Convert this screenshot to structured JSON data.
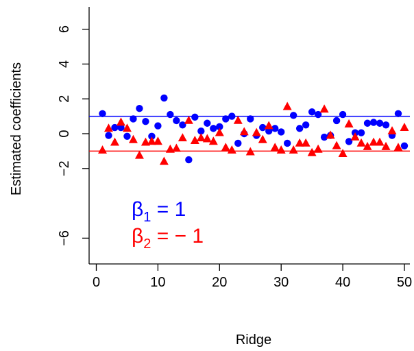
{
  "chart_data": {
    "type": "scatter",
    "xlabel": "Ridge",
    "ylabel": "Estimated coefficients",
    "xlim": [
      -1,
      52
    ],
    "ylim": [
      -7.6,
      7.2
    ],
    "xticks": [
      0,
      10,
      20,
      30,
      40,
      50
    ],
    "yticks": [
      6,
      4,
      2,
      0,
      -2,
      -6
    ],
    "ytick_labels": [
      "6",
      "4",
      "2",
      "0",
      "−2",
      "−6"
    ],
    "grid": false,
    "series": [
      {
        "color": "#0000ff",
        "marker": "circle",
        "reference_line": 1,
        "x": [
          1,
          2,
          3,
          4,
          5,
          6,
          7,
          8,
          9,
          10,
          11,
          12,
          13,
          14,
          15,
          16,
          17,
          18,
          19,
          20,
          21,
          22,
          23,
          24,
          25,
          26,
          27,
          28,
          29,
          30,
          31,
          32,
          33,
          34,
          35,
          36,
          37,
          38,
          39,
          40,
          41,
          42,
          43,
          44,
          45,
          46,
          47,
          48,
          49,
          50
        ],
        "y": [
          1.15,
          -0.1,
          0.35,
          0.35,
          -0.15,
          0.85,
          1.45,
          0.7,
          -0.15,
          0.45,
          2.05,
          1.1,
          0.75,
          0.5,
          -1.5,
          0.95,
          0.15,
          0.6,
          0.3,
          0.4,
          0.85,
          1.0,
          -0.55,
          0.0,
          0.85,
          -0.1,
          0.35,
          0.15,
          0.3,
          0.1,
          -0.55,
          1.05,
          0.3,
          0.5,
          1.25,
          1.1,
          -0.2,
          -0.1,
          0.75,
          1.1,
          -0.45,
          0.05,
          0.05,
          0.6,
          0.65,
          0.6,
          0.5,
          -0.1,
          1.15,
          -0.7
        ]
      },
      {
        "color": "#ff0000",
        "marker": "triangle",
        "reference_line": -1,
        "x": [
          1,
          2,
          3,
          4,
          5,
          6,
          7,
          8,
          9,
          10,
          11,
          12,
          13,
          14,
          15,
          16,
          17,
          18,
          19,
          20,
          21,
          22,
          23,
          24,
          25,
          26,
          27,
          28,
          29,
          30,
          31,
          32,
          33,
          34,
          35,
          36,
          37,
          38,
          39,
          40,
          41,
          42,
          43,
          44,
          45,
          46,
          47,
          48,
          49,
          50
        ],
        "y": [
          -0.95,
          0.3,
          -0.5,
          0.65,
          0.3,
          -0.35,
          -1.25,
          -0.5,
          -0.45,
          -0.45,
          -1.6,
          -0.9,
          -0.85,
          -0.25,
          0.75,
          -0.4,
          -0.25,
          -0.3,
          -0.45,
          0.05,
          -0.8,
          -0.95,
          0.75,
          0.1,
          -1.05,
          0.05,
          -0.35,
          0.45,
          -0.8,
          -0.95,
          1.55,
          -0.95,
          -0.55,
          -0.55,
          -1.1,
          -0.9,
          1.4,
          -0.1,
          -0.7,
          -1.15,
          0.55,
          -0.2,
          -0.55,
          -0.75,
          -0.5,
          -0.5,
          -0.75,
          0.15,
          -0.8,
          0.35
        ]
      }
    ],
    "annotations": [
      {
        "symbol": "β",
        "sub": "1",
        "rest": " = 1",
        "color": "#0000ff"
      },
      {
        "symbol": "β",
        "sub": "2",
        "rest": " = − 1",
        "color": "#ff0000"
      }
    ]
  }
}
